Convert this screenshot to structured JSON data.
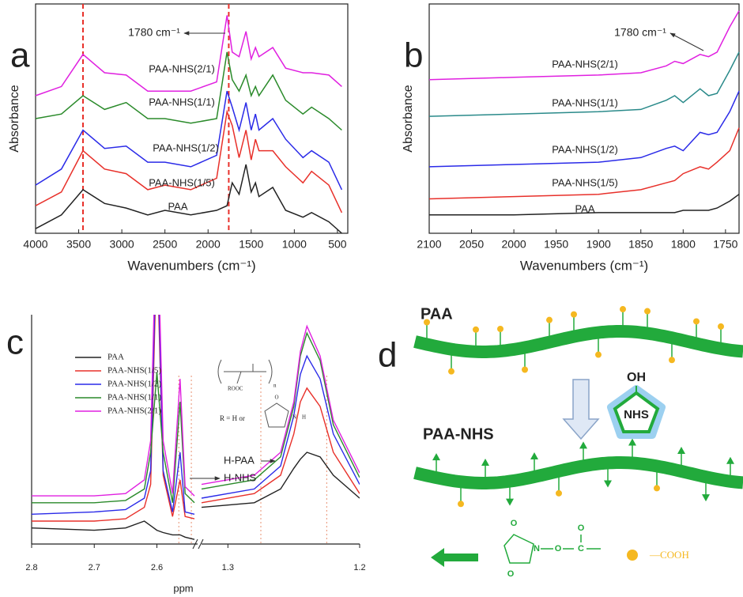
{
  "chart_data": [
    {
      "panel": "a",
      "type": "line",
      "x_label": "Wavenumbers (cm⁻¹)",
      "y_label": "Absorbance",
      "annotation": "1780 cm⁻¹",
      "xlim": [
        4000,
        380
      ],
      "xticks": [
        4000,
        3500,
        3000,
        2500,
        2000,
        1500,
        1000,
        500
      ],
      "ylim": [
        0,
        100
      ],
      "marker_lines": [
        3450,
        1760
      ],
      "marker_color": "#e8302a",
      "x": [
        4000,
        3700,
        3450,
        3200,
        2950,
        2700,
        2500,
        2200,
        1900,
        1780,
        1720,
        1640,
        1560,
        1500,
        1450,
        1410,
        1250,
        1100,
        900,
        800,
        600,
        450
      ],
      "series": [
        {
          "name": "PAA",
          "color": "#222222",
          "values": [
            2,
            8,
            19,
            13,
            11,
            8,
            10,
            8,
            10,
            12,
            22,
            17,
            30,
            18,
            22,
            16,
            20,
            10,
            7,
            9,
            5,
            0
          ]
        },
        {
          "name": "PAA-NHS(1/5)",
          "color": "#e8302a",
          "values": [
            12,
            18,
            36,
            28,
            26,
            19,
            21,
            19,
            24,
            53,
            47,
            33,
            45,
            32,
            41,
            36,
            36,
            29,
            22,
            27,
            21,
            9
          ]
        },
        {
          "name": "PAA-NHS(1/2)",
          "color": "#2a2ae8",
          "values": [
            21,
            28,
            45,
            37,
            38,
            31,
            31,
            29,
            34,
            62,
            55,
            45,
            57,
            45,
            52,
            45,
            50,
            41,
            33,
            36,
            31,
            19
          ]
        },
        {
          "name": "PAA-NHS(1/1)",
          "color": "#2a8a2a",
          "values": [
            50,
            52,
            60,
            54,
            57,
            50,
            50,
            48,
            50,
            79,
            67,
            62,
            69,
            60,
            64,
            60,
            69,
            58,
            52,
            55,
            50,
            45
          ]
        },
        {
          "name": "PAA-NHS(2/1)",
          "color": "#e020e0",
          "values": [
            60,
            64,
            78,
            70,
            69,
            62,
            62,
            62,
            66,
            95,
            79,
            77,
            88,
            76,
            81,
            77,
            81,
            72,
            70,
            70,
            69,
            64
          ]
        }
      ]
    },
    {
      "panel": "b",
      "type": "line",
      "x_label": "Wavenumbers (cm⁻¹)",
      "y_label": "Absorbance",
      "annotation": "1780 cm⁻¹",
      "xlim": [
        2100,
        1734
      ],
      "xticks": [
        2100,
        2050,
        2000,
        1950,
        1900,
        1850,
        1800,
        1750
      ],
      "ylim": [
        0,
        100
      ],
      "x": [
        2100,
        2000,
        1900,
        1850,
        1820,
        1810,
        1800,
        1780,
        1770,
        1760,
        1745,
        1734
      ],
      "series": [
        {
          "name": "PAA",
          "color": "#222222",
          "values": [
            8,
            8,
            9,
            9,
            9,
            9,
            10,
            10,
            10,
            11,
            14,
            17
          ]
        },
        {
          "name": "PAA-NHS(1/5)",
          "color": "#e8302a",
          "values": [
            15,
            16,
            17,
            19,
            22,
            23,
            26,
            29,
            28,
            31,
            36,
            46
          ]
        },
        {
          "name": "PAA-NHS(1/2)",
          "color": "#2a2ae8",
          "values": [
            29,
            30,
            31,
            33,
            37,
            38,
            36,
            44,
            43,
            44,
            53,
            62
          ]
        },
        {
          "name": "PAA-NHS(1/1)",
          "color": "#2a8a8a",
          "values": [
            51,
            52,
            53,
            54,
            58,
            60,
            57,
            63,
            60,
            61,
            71,
            79
          ]
        },
        {
          "name": "PAA-NHS(2/1)",
          "color": "#e020e0",
          "values": [
            67,
            68,
            69,
            70,
            73,
            75,
            74,
            78,
            77,
            79,
            90,
            97
          ]
        }
      ]
    },
    {
      "panel": "c",
      "type": "nmr",
      "x_label": "ppm",
      "ylim": [
        0,
        100
      ],
      "marker_lines": [
        2.565,
        2.545,
        1.275,
        1.225
      ],
      "marker_color": "#e89070",
      "segments": [
        {
          "xlim": [
            2.8,
            2.535
          ],
          "xticks": [
            2.8,
            2.7,
            2.6
          ]
        },
        {
          "xlim": [
            1.32,
            1.2
          ],
          "xticks": [
            1.3,
            1.2
          ]
        }
      ],
      "annotations": [
        "H-PAA",
        "H-NHS"
      ],
      "structure_labels": [
        "ROOC",
        "n",
        "R = H or",
        "O",
        "N",
        "H"
      ],
      "x": [
        2.8,
        2.7,
        2.65,
        2.62,
        2.61,
        2.6,
        2.59,
        2.575,
        2.563,
        2.555,
        2.54,
        1.32,
        1.28,
        1.26,
        1.25,
        1.245,
        1.24,
        1.23,
        1.22,
        1.2
      ],
      "series": [
        {
          "name": "PAA",
          "color": "#222222",
          "values": [
            7,
            6,
            7,
            10,
            8,
            6,
            5,
            4,
            4,
            3,
            2,
            16,
            18,
            24,
            33,
            37,
            40,
            38,
            30,
            20
          ]
        },
        {
          "name": "PAA-NHS(1/5)",
          "color": "#e8302a",
          "values": [
            10,
            10,
            11,
            16,
            26,
            130,
            30,
            12,
            28,
            12,
            11,
            18,
            22,
            30,
            48,
            62,
            68,
            60,
            40,
            22
          ]
        },
        {
          "name": "PAA-NHS(1/2)",
          "color": "#2a2ae8",
          "values": [
            13,
            14,
            15,
            20,
            32,
            140,
            32,
            14,
            40,
            14,
            13,
            20,
            24,
            34,
            56,
            74,
            82,
            72,
            48,
            26
          ]
        },
        {
          "name": "PAA-NHS(1/1)",
          "color": "#2a8a2a",
          "values": [
            18,
            18,
            19,
            24,
            40,
            75,
            40,
            18,
            62,
            22,
            18,
            24,
            28,
            38,
            60,
            82,
            92,
            80,
            52,
            29
          ]
        },
        {
          "name": "PAA-NHS(2/1)",
          "color": "#e020e0",
          "values": [
            21,
            21,
            22,
            28,
            45,
            150,
            45,
            22,
            72,
            25,
            21,
            26,
            30,
            40,
            62,
            84,
            95,
            82,
            54,
            31
          ]
        }
      ]
    }
  ],
  "diagram": {
    "panel": "d",
    "top_label": "PAA",
    "bottom_label": "PAA-NHS",
    "reagent_group": "OH",
    "reagent": "NHS",
    "ester_atoms": [
      "O",
      "N",
      "O",
      "O",
      "C",
      "O"
    ],
    "cooh_label": "—COOH"
  }
}
